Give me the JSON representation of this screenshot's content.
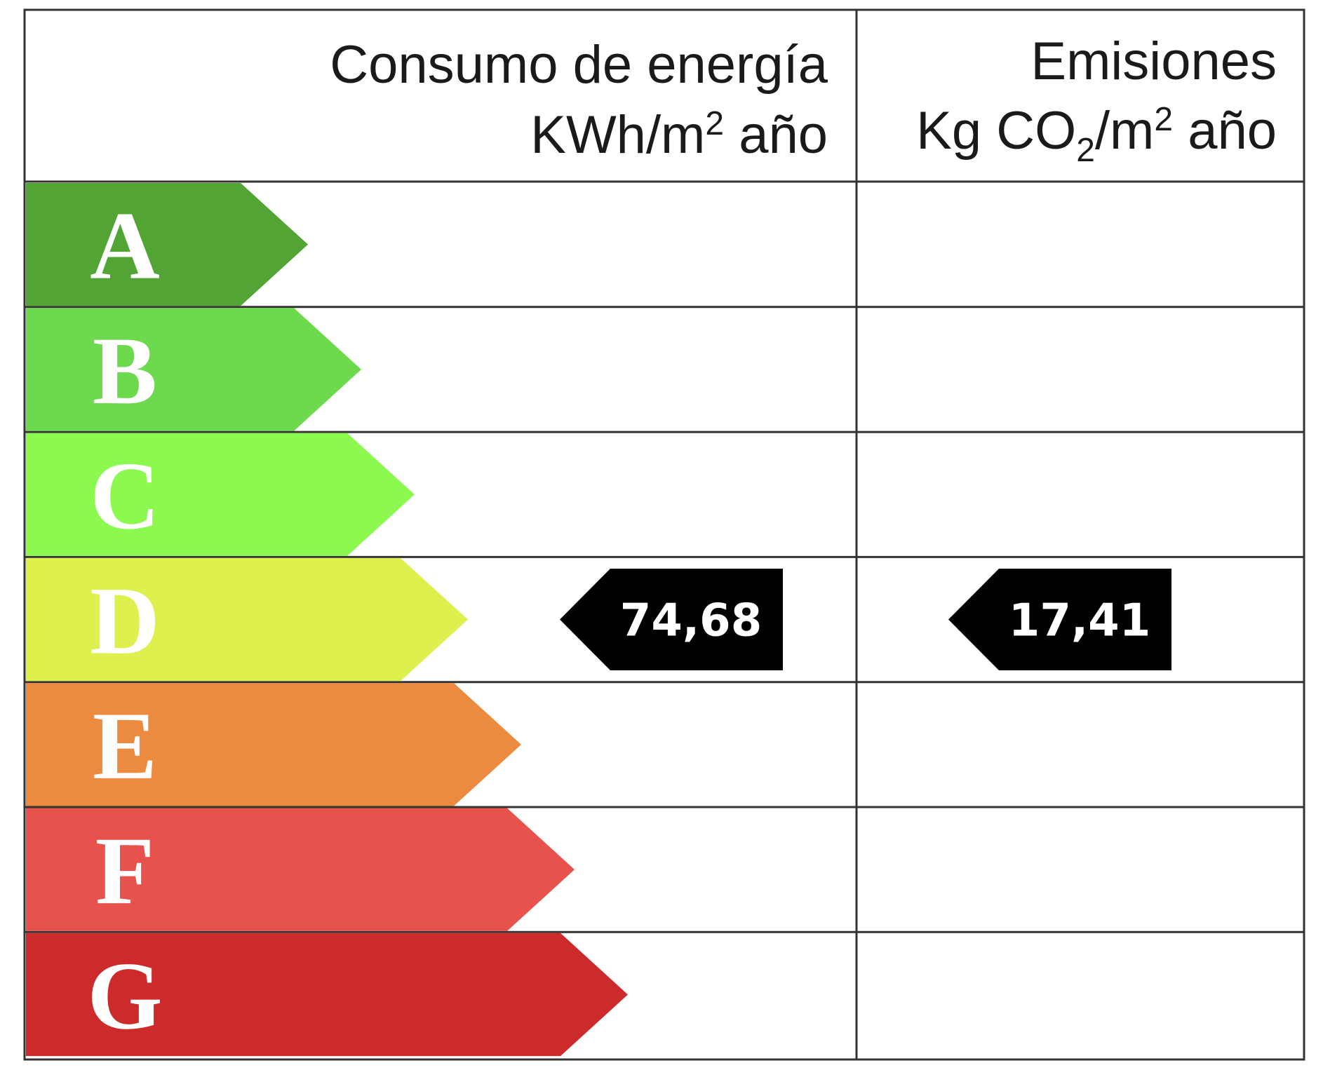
{
  "header": {
    "energy_title": "Consumo de energía",
    "energy_unit": {
      "prefix": "KWh/m",
      "sup": "2",
      "suffix": " año"
    },
    "emissions_title": "Emisiones",
    "emissions_unit": {
      "prefix": "Kg CO",
      "sub": "2",
      "mid": "/m",
      "sup": "2",
      "suffix": " año"
    }
  },
  "ratings": [
    {
      "letter": "A",
      "color": "#52a535"
    },
    {
      "letter": "B",
      "color": "#6dda4d"
    },
    {
      "letter": "C",
      "color": "#8cf94f"
    },
    {
      "letter": "D",
      "color": "#def04e"
    },
    {
      "letter": "E",
      "color": "#ec8b3f"
    },
    {
      "letter": "F",
      "color": "#e8524d"
    },
    {
      "letter": "G",
      "color": "#cc2a2b"
    }
  ],
  "energy_indicator": {
    "rating": "D",
    "value": "74,68"
  },
  "emissions_indicator": {
    "rating": "D",
    "value": "17,41"
  }
}
